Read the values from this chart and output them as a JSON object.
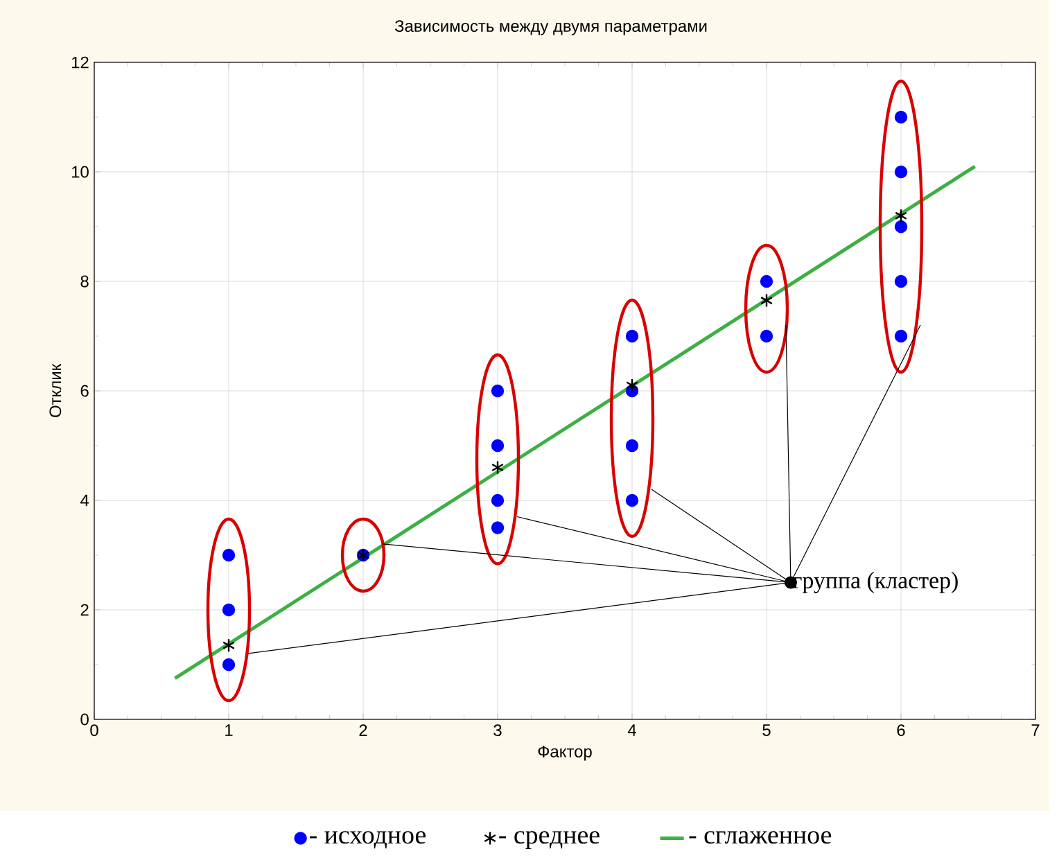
{
  "chart_data": {
    "type": "scatter",
    "title": "Зависимость между двумя параметрами",
    "xlabel": "Фактор",
    "ylabel": "Отклик",
    "xlim": [
      0,
      7
    ],
    "xticks": [
      0,
      1,
      2,
      3,
      4,
      5,
      6,
      7
    ],
    "ylim": [
      0,
      12
    ],
    "yticks": [
      0,
      2,
      4,
      6,
      8,
      10,
      12
    ],
    "grid": true,
    "legend": "bottom",
    "series": [
      {
        "name": "- исходное",
        "marker": "circle",
        "color": "#0000ff",
        "x": [
          1,
          1,
          1,
          2,
          3,
          3,
          3,
          3,
          4,
          4,
          4,
          4,
          5,
          5,
          6,
          6,
          6,
          6,
          6
        ],
        "values": [
          1,
          2,
          3,
          3,
          3.5,
          4,
          5,
          6,
          4,
          5,
          6,
          7,
          7,
          8,
          7,
          8,
          9,
          10,
          11
        ]
      },
      {
        "name": "- среднее",
        "marker": "cross",
        "color": "#000000",
        "x": [
          1,
          2,
          3,
          4,
          5,
          6
        ],
        "values": [
          1.35,
          3,
          4.6,
          6.1,
          7.65,
          9.2
        ]
      },
      {
        "name": "- сглаженное",
        "type": "line",
        "marker": "none",
        "line_style": "solid",
        "color": "#3cb043",
        "x": [
          0.6,
          6.55
        ],
        "values": [
          0.75,
          10.1
        ]
      }
    ],
    "annotations": [
      {
        "text": "группа (кластер)",
        "x": 5.18,
        "y": 2.5
      }
    ]
  }
}
